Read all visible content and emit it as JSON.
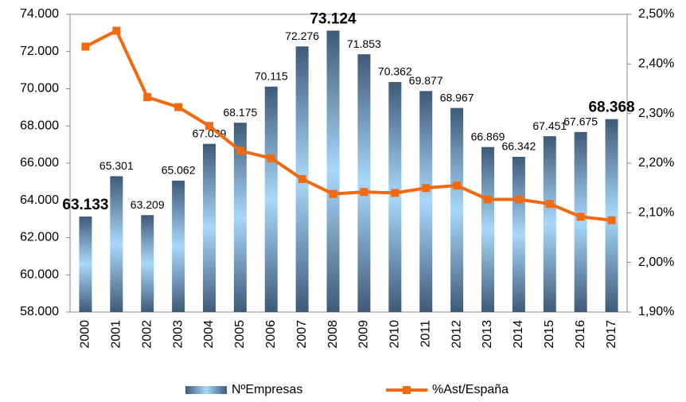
{
  "chart_data": {
    "type": "bar_line",
    "categories": [
      "2000",
      "2001",
      "2002",
      "2003",
      "2004",
      "2005",
      "2006",
      "2007",
      "2008",
      "2009",
      "2010",
      "2011",
      "2012",
      "2013",
      "2014",
      "2015",
      "2016",
      "2017"
    ],
    "series": [
      {
        "name": "NºEmpresas",
        "type": "bar",
        "color": "#4a6a8c",
        "values": [
          63133,
          65301,
          63209,
          65062,
          67039,
          68175,
          70115,
          72276,
          73124,
          71853,
          70362,
          69877,
          68967,
          66869,
          66342,
          67451,
          67675,
          68368
        ],
        "value_labels": [
          "63.133",
          "65.301",
          "63.209",
          "65.062",
          "67.039",
          "68.175",
          "70.115",
          "72.276",
          "73.124",
          "71.853",
          "70.362",
          "69.877",
          "68.967",
          "66.869",
          "66.342",
          "67.451",
          "67.675",
          "68.368"
        ]
      },
      {
        "name": "%Ast/España",
        "type": "line",
        "color": "#f26a10",
        "axis": "y2",
        "values": [
          2.435,
          2.467,
          2.333,
          2.313,
          2.275,
          2.225,
          2.21,
          2.168,
          2.138,
          2.142,
          2.14,
          2.15,
          2.155,
          2.127,
          2.127,
          2.118,
          2.092,
          2.085
        ]
      }
    ],
    "ylim": [
      58000,
      74000
    ],
    "yticks": [
      {
        "value": 58000,
        "label": "58.000"
      },
      {
        "value": 60000,
        "label": "60.000"
      },
      {
        "value": 62000,
        "label": "62.000"
      },
      {
        "value": 64000,
        "label": "64.000"
      },
      {
        "value": 66000,
        "label": "66.000"
      },
      {
        "value": 68000,
        "label": "68.000"
      },
      {
        "value": 70000,
        "label": "70.000"
      },
      {
        "value": 72000,
        "label": "72.000"
      },
      {
        "value": 74000,
        "label": "74.000"
      }
    ],
    "y2lim": [
      1.9,
      2.5
    ],
    "y2ticks": [
      {
        "value": 1.9,
        "label": "1,90%"
      },
      {
        "value": 2.0,
        "label": "2,00%"
      },
      {
        "value": 2.1,
        "label": "2,10%"
      },
      {
        "value": 2.2,
        "label": "2,20%"
      },
      {
        "value": 2.3,
        "label": "2,30%"
      },
      {
        "value": 2.4,
        "label": "2,40%"
      },
      {
        "value": 2.5,
        "label": "2,50%"
      }
    ],
    "legend": "bottom"
  }
}
